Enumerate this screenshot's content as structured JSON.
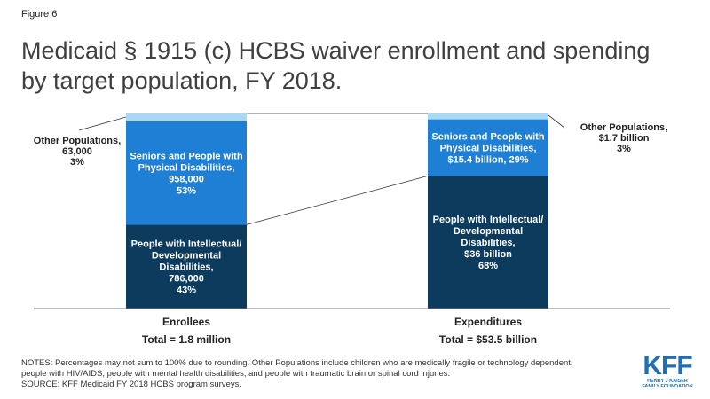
{
  "figure_label": "Figure 6",
  "title_line1": "Medicaid § 1915 (c) HCBS waiver enrollment and spending",
  "title_line2": "by target population, FY 2018.",
  "chart_data": {
    "type": "bar",
    "stacked": true,
    "percent_stacked": true,
    "categories": [
      "Enrollees",
      "Expenditures"
    ],
    "category_totals": [
      "Total = 1.8 million",
      "Total = $53.5 billion"
    ],
    "ylim": [
      0,
      100
    ],
    "series": [
      {
        "id": "idd",
        "color": "#0c3b5e",
        "values": [
          43,
          68
        ],
        "labels": [
          [
            "People with Intellectual/",
            "Developmental",
            "Disabilities,",
            "786,000",
            "43%"
          ],
          [
            "People with Intellectual/",
            "Developmental",
            "Disabilities,",
            "$36 billion",
            "68%"
          ]
        ]
      },
      {
        "id": "seniors",
        "color": "#1f7fd4",
        "values": [
          53,
          29
        ],
        "labels": [
          [
            "Seniors and People with",
            "Physical Disabilities,",
            "958,000",
            "53%"
          ],
          [
            "Seniors and People with",
            "Physical Disabilities,",
            "$15.4 billion, 29%"
          ]
        ]
      },
      {
        "id": "other",
        "color": "#a9d8f2",
        "values": [
          3,
          3
        ],
        "labels": [
          [
            "Other Populations,",
            "63,000",
            "3%"
          ],
          [
            "Other Populations,",
            "$1.7 billion",
            "3%"
          ]
        ]
      }
    ]
  },
  "notes_line1": "NOTES: Percentages may not sum to 100% due to rounding. Other Populations include children who are medically fragile or technology dependent,",
  "notes_line2": "people with HIV/AIDS, people with mental health disabilities, and people with traumatic brain or spinal cord injuries.",
  "source": "SOURCE: KFF Medicaid FY 2018 HCBS program surveys.",
  "logo": {
    "mark": "KFF",
    "line1": "HENRY J KAISER",
    "line2": "FAMILY FOUNDATION"
  }
}
